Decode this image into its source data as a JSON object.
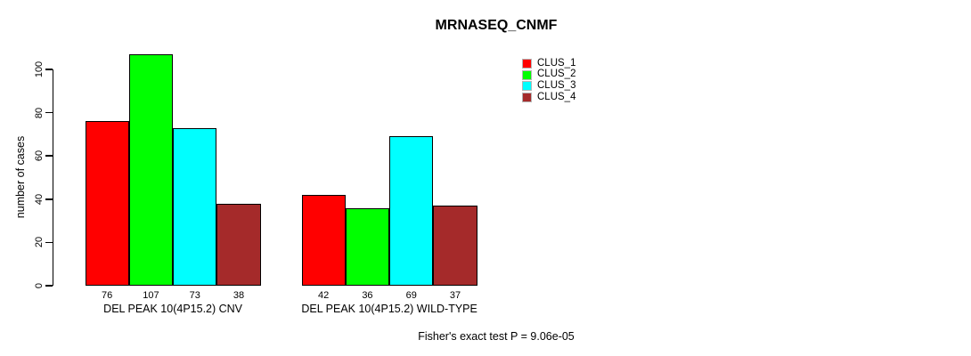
{
  "chart_data": {
    "type": "bar",
    "title": "MRNASEQ_CNMF",
    "xlabel": "",
    "ylabel": "number of cases",
    "yticks": [
      0,
      20,
      40,
      60,
      80,
      100
    ],
    "ylim": [
      0,
      111
    ],
    "grid": false,
    "legend_position": "top-right",
    "bar_border_color": "#000000",
    "categories": [
      "DEL PEAK 10(4P15.2) CNV",
      "DEL PEAK 10(4P15.2) WILD-TYPE"
    ],
    "series": [
      {
        "name": "CLUS_1",
        "color": "#FF0000",
        "values": [
          76,
          42
        ]
      },
      {
        "name": "CLUS_2",
        "color": "#00FF00",
        "values": [
          107,
          36
        ]
      },
      {
        "name": "CLUS_3",
        "color": "#00FFFF",
        "values": [
          73,
          69
        ]
      },
      {
        "name": "CLUS_4",
        "color": "#A52A2A",
        "values": [
          38,
          37
        ]
      }
    ],
    "bar_value_labels_shown": true,
    "annotation": "Fisher's exact test P = 9.06e-05"
  }
}
